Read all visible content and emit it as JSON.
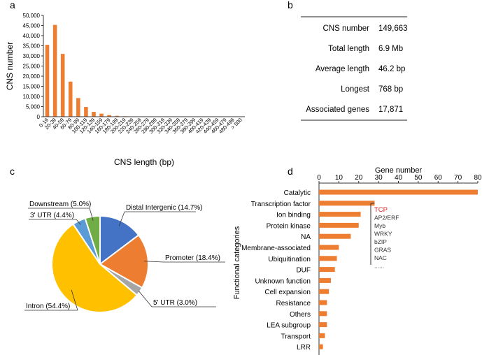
{
  "panels": {
    "a": {
      "label": "a"
    },
    "b": {
      "label": "b"
    },
    "c": {
      "label": "c"
    },
    "d": {
      "label": "d"
    }
  },
  "colors": {
    "bar": "#ed7d31",
    "pie_distal": "#4472c4",
    "pie_promoter": "#ed7d31",
    "pie_utr5": "#a5a5a5",
    "pie_intron": "#ffc000",
    "pie_utr3": "#5b9bd5",
    "pie_downstream": "#70ad47",
    "highlight": "#e02020"
  },
  "table_b": {
    "rows": [
      {
        "label": "CNS number",
        "value": "149,663"
      },
      {
        "label": "Total length",
        "value": "6.9 Mb"
      },
      {
        "label": "Average length",
        "value": "46.2 bp"
      },
      {
        "label": "Longest",
        "value": "768 bp"
      },
      {
        "label": "Associated genes",
        "value": "17,871"
      }
    ]
  },
  "chart_data": [
    {
      "panel": "a",
      "type": "bar",
      "title": "",
      "xlabel": "CNS length (bp)",
      "ylabel": "CNS number",
      "ylim": [
        0,
        50000
      ],
      "yticks": [
        "0",
        "5,000",
        "10,000",
        "15,000",
        "20,000",
        "25,000",
        "30,000",
        "35,000",
        "40,000",
        "45,000",
        "50,000"
      ],
      "categories": [
        "0-19",
        "20-39",
        "40-59",
        "60-79",
        "80-99",
        "100-119",
        "120-139",
        "140-159",
        "160-179",
        "180-199",
        "200-219",
        "220-239",
        "240-259",
        "260-279",
        "280-299",
        "300-319",
        "320-339",
        "340-359",
        "360-379",
        "380-399",
        "400-419",
        "420-439",
        "440-459",
        "460-479",
        "480-499",
        "> 500"
      ],
      "values": [
        35500,
        45300,
        31000,
        17300,
        9200,
        4800,
        2400,
        1500,
        800,
        450,
        250,
        150,
        100,
        80,
        60,
        50,
        40,
        30,
        25,
        20,
        15,
        12,
        10,
        8,
        6,
        40
      ]
    },
    {
      "panel": "c",
      "type": "pie",
      "slices": [
        {
          "name": "Distal Intergenic",
          "value": 14.7,
          "label": "Distal Intergenic (14.7%)"
        },
        {
          "name": "Promoter",
          "value": 18.4,
          "label": "Promoter (18.4%)"
        },
        {
          "name": "5' UTR",
          "value": 3.0,
          "label": "5' UTR (3.0%)"
        },
        {
          "name": "Intron",
          "value": 54.4,
          "label": "Intron (54.4%)"
        },
        {
          "name": "3' UTR",
          "value": 4.4,
          "label": "3' UTR (4.4%)"
        },
        {
          "name": "Downstream",
          "value": 5.0,
          "label": "Downstream (5.0%)"
        }
      ]
    },
    {
      "panel": "d",
      "type": "bar",
      "orientation": "horizontal",
      "title": "Gene number",
      "ylabel": "Functional categories",
      "xlim": [
        0,
        80
      ],
      "xticks": [
        "0",
        "10",
        "20",
        "30",
        "40",
        "50",
        "60",
        "70",
        "80"
      ],
      "categories": [
        "Catalytic",
        "Transcription factor",
        "Ion binding",
        "Protein kinase",
        "NA",
        "Membrane-associated",
        "Ubiquitination",
        "DUF",
        "Unknown function",
        "Cell expansion",
        "Resistance",
        "Others",
        "LEA subgroup",
        "Transport",
        "LRR"
      ],
      "values": [
        80,
        28,
        21,
        20,
        16,
        10,
        9,
        8,
        6,
        5,
        4,
        4,
        4,
        3,
        2
      ],
      "more_marker": "......",
      "tf_families": [
        "TCP",
        "AP2/ERF",
        "Myb",
        "WRKY",
        "bZIP",
        "GRAS",
        "NAC",
        "......"
      ]
    }
  ]
}
